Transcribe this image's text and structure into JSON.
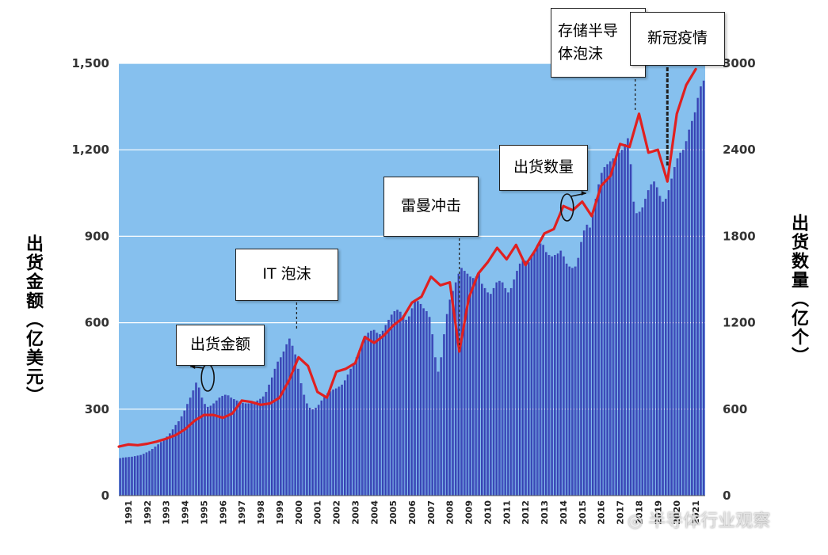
{
  "chart_data": {
    "type": "bar",
    "secondary_type": "line",
    "x_labels": [
      "1991",
      "1992",
      "1993",
      "1994",
      "1995",
      "1996",
      "1997",
      "1998",
      "1999",
      "2000",
      "2001",
      "2002",
      "2003",
      "2004",
      "2005",
      "2006",
      "2007",
      "2008",
      "2009",
      "2010",
      "2011",
      "2012",
      "2013",
      "2014",
      "2015",
      "2016",
      "2017",
      "2018",
      "2019",
      "2020",
      "2021"
    ],
    "ylabel_left": "出货金额（亿美元）",
    "ylabel_right": "出货数量（亿个）",
    "ylim_left": [
      0,
      1500
    ],
    "ylim_right": [
      0,
      3000
    ],
    "yticks_left": [
      "0",
      "300",
      "600",
      "900",
      "1,200",
      "1,500"
    ],
    "yticks_right": [
      "0",
      "600",
      "1200",
      "1800",
      "2400",
      "3000"
    ],
    "series": [
      {
        "name": "出货金额",
        "type": "bar",
        "axis": "left",
        "color": "#3340b0",
        "values": [
          130,
          132,
          133,
          134,
          135,
          137,
          139,
          141,
          145,
          150,
          155,
          162,
          170,
          178,
          186,
          194,
          205,
          216,
          230,
          245,
          258,
          275,
          295,
          318,
          340,
          365,
          392,
          375,
          340,
          318,
          308,
          312,
          320,
          330,
          340,
          346,
          350,
          348,
          340,
          335,
          330,
          326,
          322,
          320,
          320,
          322,
          326,
          330,
          336,
          344,
          360,
          385,
          410,
          440,
          465,
          480,
          500,
          525,
          545,
          520,
          490,
          440,
          390,
          350,
          320,
          305,
          300,
          305,
          315,
          330,
          345,
          355,
          362,
          368,
          372,
          378,
          385,
          400,
          420,
          440,
          460,
          480,
          505,
          530,
          555,
          565,
          572,
          575,
          565,
          560,
          572,
          592,
          610,
          628,
          640,
          645,
          638,
          625,
          610,
          622,
          650,
          680,
          675,
          665,
          650,
          640,
          620,
          560,
          480,
          430,
          480,
          560,
          630,
          680,
          710,
          740,
          770,
          790,
          780,
          770,
          760,
          755,
          760,
          770,
          735,
          720,
          705,
          700,
          720,
          740,
          745,
          740,
          720,
          705,
          720,
          750,
          780,
          805,
          815,
          815,
          810,
          830,
          850,
          870,
          875,
          870,
          845,
          835,
          830,
          835,
          840,
          850,
          830,
          805,
          795,
          790,
          795,
          825,
          880,
          920,
          940,
          930,
          975,
          1030,
          1080,
          1120,
          1140,
          1150,
          1160,
          1170,
          1180,
          1190,
          1200,
          1220,
          1240,
          1150,
          1020,
          980,
          985,
          1000,
          1030,
          1060,
          1080,
          1090,
          1070,
          1040,
          1020,
          1030,
          1060,
          1100,
          1140,
          1170,
          1190,
          1200,
          1230,
          1270,
          1300,
          1330,
          1380,
          1420,
          1440
        ]
      },
      {
        "name": "出货数量",
        "type": "line",
        "axis": "right",
        "color": "#e02020",
        "points": [
          [
            1991.0,
            340
          ],
          [
            1991.5,
            355
          ],
          [
            1992.0,
            350
          ],
          [
            1992.5,
            360
          ],
          [
            1993.0,
            375
          ],
          [
            1993.5,
            395
          ],
          [
            1994.0,
            420
          ],
          [
            1994.5,
            460
          ],
          [
            1995.0,
            520
          ],
          [
            1995.5,
            560
          ],
          [
            1996.0,
            560
          ],
          [
            1996.5,
            540
          ],
          [
            1997.0,
            570
          ],
          [
            1997.5,
            660
          ],
          [
            1998.0,
            650
          ],
          [
            1998.5,
            630
          ],
          [
            1999.0,
            640
          ],
          [
            1999.5,
            680
          ],
          [
            2000.0,
            800
          ],
          [
            2000.5,
            960
          ],
          [
            2001.0,
            900
          ],
          [
            2001.5,
            720
          ],
          [
            2002.0,
            680
          ],
          [
            2002.5,
            860
          ],
          [
            2003.0,
            880
          ],
          [
            2003.5,
            920
          ],
          [
            2004.0,
            1100
          ],
          [
            2004.5,
            1060
          ],
          [
            2005.0,
            1110
          ],
          [
            2005.5,
            1180
          ],
          [
            2006.0,
            1230
          ],
          [
            2006.5,
            1340
          ],
          [
            2007.0,
            1380
          ],
          [
            2007.5,
            1520
          ],
          [
            2008.0,
            1460
          ],
          [
            2008.5,
            1480
          ],
          [
            2009.0,
            1000
          ],
          [
            2009.5,
            1370
          ],
          [
            2010.0,
            1540
          ],
          [
            2010.5,
            1620
          ],
          [
            2011.0,
            1720
          ],
          [
            2011.5,
            1640
          ],
          [
            2012.0,
            1740
          ],
          [
            2012.5,
            1600
          ],
          [
            2013.0,
            1700
          ],
          [
            2013.5,
            1820
          ],
          [
            2014.0,
            1850
          ],
          [
            2014.5,
            2010
          ],
          [
            2015.0,
            1980
          ],
          [
            2015.5,
            2040
          ],
          [
            2016.0,
            1940
          ],
          [
            2016.5,
            2150
          ],
          [
            2017.0,
            2220
          ],
          [
            2017.5,
            2440
          ],
          [
            2018.0,
            2420
          ],
          [
            2018.5,
            2650
          ],
          [
            2019.0,
            2380
          ],
          [
            2019.5,
            2400
          ],
          [
            2020.0,
            2180
          ],
          [
            2020.5,
            2650
          ],
          [
            2021.0,
            2850
          ],
          [
            2021.5,
            2960
          ]
        ]
      }
    ],
    "annotations": [
      {
        "id": "amount",
        "text": "出货金额",
        "year": 1995.7
      },
      {
        "id": "it-bubble",
        "text": "IT 泡沫",
        "year": 2000.4
      },
      {
        "id": "lehman",
        "text": "雷曼冲击",
        "year": 2009.0
      },
      {
        "id": "quantity",
        "text": "出货数量",
        "year": 2014.7
      },
      {
        "id": "memory-bubble",
        "lines": [
          "存储半导",
          "体泡沫"
        ],
        "year": 2018.3
      },
      {
        "id": "covid",
        "text": "新冠疫情",
        "year": 2020.0
      }
    ]
  },
  "watermark": "半导体行业观察",
  "colors": {
    "plot_background": "#86c0ee",
    "gridline": "#ffffff",
    "bar": "#3340b0",
    "bar_highlight": "#8fa0ff",
    "line": "#e02020"
  }
}
